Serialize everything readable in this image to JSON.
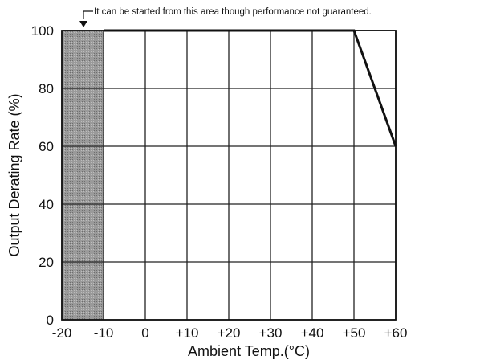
{
  "chart_data": {
    "type": "line",
    "xlabel": "Ambient Temp.(°C)",
    "ylabel": "Output Derating Rate (%)",
    "xlim": [
      -20,
      60
    ],
    "ylim": [
      0,
      100
    ],
    "x_ticks": [
      -20,
      -10,
      0,
      10,
      20,
      30,
      40,
      50,
      60
    ],
    "x_tick_labels": [
      "-20",
      "-10",
      "0",
      "+10",
      "+20",
      "+30",
      "+40",
      "+50",
      "+60"
    ],
    "y_ticks": [
      0,
      20,
      40,
      60,
      80,
      100
    ],
    "y_tick_labels": [
      "0",
      "20",
      "40",
      "60",
      "80",
      "100"
    ],
    "grid": true,
    "series": [
      {
        "x": [
          -10,
          50,
          60
        ],
        "y": [
          100,
          100,
          60
        ]
      }
    ],
    "shaded_region": {
      "x": [
        -20,
        -10
      ]
    },
    "annotation": "It can be started from this area though performance not guaranteed.",
    "colors": {
      "line": "#111111",
      "grid": "#222222",
      "shade": "#8f8f8f"
    }
  }
}
